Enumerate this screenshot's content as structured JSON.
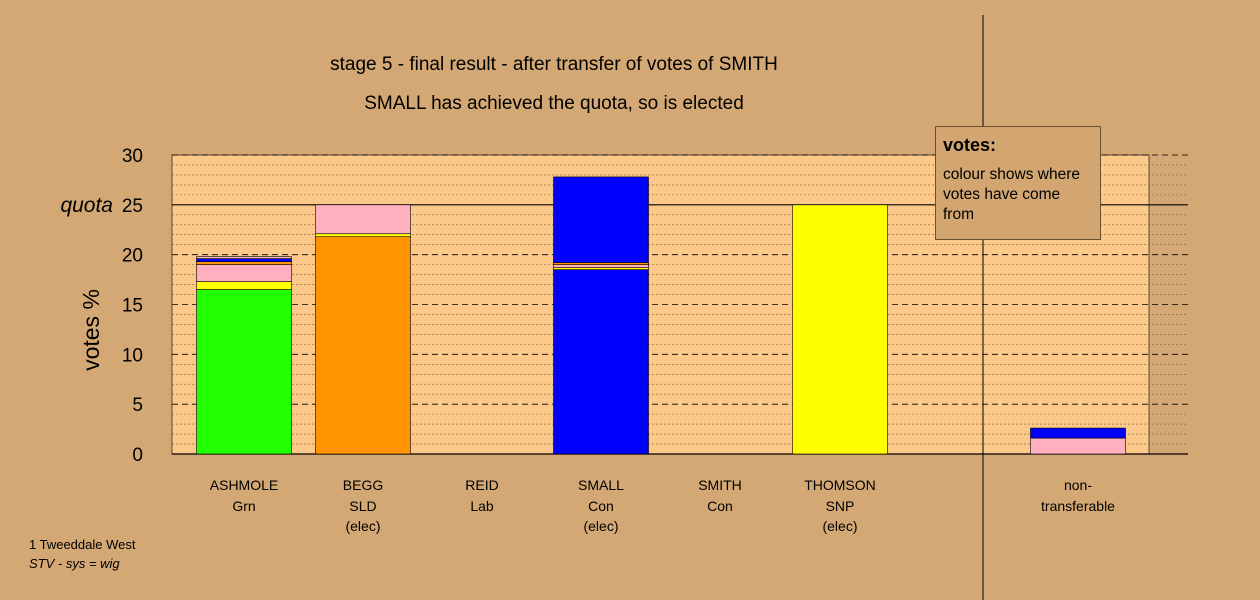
{
  "title": "stage 5 - final result - after transfer of votes of SMITH",
  "subtitle": "SMALL has achieved the quota, so is elected",
  "legend": {
    "title": "votes:",
    "text": "colour shows where votes have come from"
  },
  "footer": {
    "ward": "1 Tweeddale West",
    "system": "STV - sys = wig"
  },
  "colors": {
    "background": "#d4a874",
    "plot": "#fcc98a",
    "Grn": "#22ff00",
    "SLD": "#ff9300",
    "Con": "#0000ff",
    "SNP": "#ffff00",
    "Lab": "#ffb0c0"
  },
  "chart_data": {
    "type": "bar",
    "stacked": true,
    "ylabel": "votes %",
    "ylim": [
      0,
      30
    ],
    "yticks": [
      0,
      5,
      10,
      15,
      20,
      25,
      30
    ],
    "quota": 25,
    "quota_label": "quota",
    "grid": true,
    "categories": [
      {
        "name": "ASHMOLE",
        "party": "Grn",
        "note": ""
      },
      {
        "name": "BEGG",
        "party": "SLD",
        "note": "(elec)"
      },
      {
        "name": "REID",
        "party": "Lab",
        "note": ""
      },
      {
        "name": "SMALL",
        "party": "Con",
        "note": "(elec)"
      },
      {
        "name": "SMITH",
        "party": "Con",
        "note": ""
      },
      {
        "name": "THOMSON",
        "party": "SNP",
        "note": "(elec)"
      },
      {
        "name": "non-",
        "party": "transferable",
        "note": ""
      }
    ],
    "segments": [
      [
        {
          "color": "#22ff00",
          "value": 16.5
        },
        {
          "color": "#ffff00",
          "value": 0.8
        },
        {
          "color": "#ffb0c0",
          "value": 1.7
        },
        {
          "color": "#ff9300",
          "value": 0.3
        },
        {
          "color": "#0000ff",
          "value": 0.3
        },
        {
          "color": "#ffb0c0",
          "value": 0.2
        }
      ],
      [
        {
          "color": "#ff9300",
          "value": 21.8
        },
        {
          "color": "#ffff00",
          "value": 0.3
        },
        {
          "color": "#ffb0c0",
          "value": 2.9
        }
      ],
      [],
      [
        {
          "color": "#0000ff",
          "value": 18.5
        },
        {
          "color": "#ffff00",
          "value": 0.2
        },
        {
          "color": "#ffb0c0",
          "value": 0.3
        },
        {
          "color": "#ff9300",
          "value": 0.2
        },
        {
          "color": "#0000ff",
          "value": 8.6
        }
      ],
      [],
      [
        {
          "color": "#ffff00",
          "value": 25.0
        }
      ],
      [
        {
          "color": "#ffb0c0",
          "value": 1.6
        },
        {
          "color": "#0000ff",
          "value": 1.0
        }
      ]
    ]
  }
}
